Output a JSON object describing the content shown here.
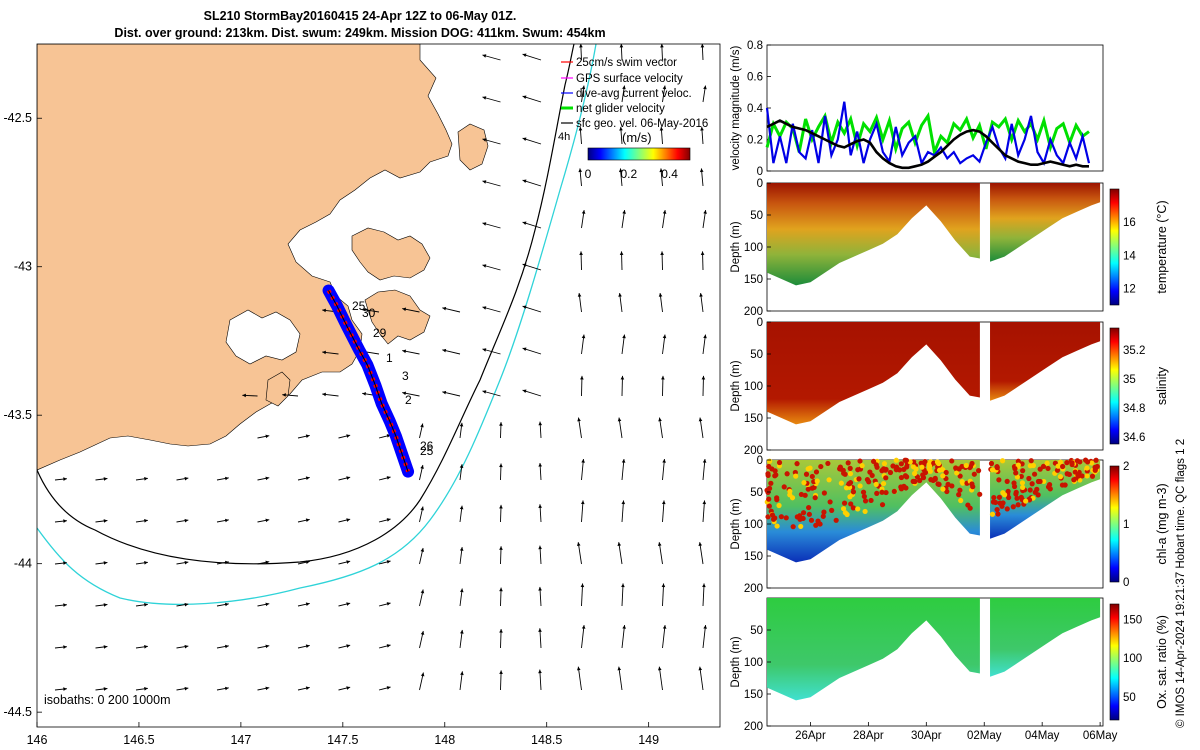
{
  "header": {
    "title_line1": "SL210 StormBay20160415 24-Apr 12Z to 06-May 01Z.",
    "title_line2": "Dist. over ground: 213km. Dist. swum: 249km. Mission DOG: 411km. Swum: 454km"
  },
  "colors": {
    "land": "#f7c495",
    "water": "#ffffff",
    "track_blue": "#0000ff",
    "track_red": "#ff0000",
    "isobath_200": "#000000",
    "isobath_1000": "#2fd3d8",
    "glider_net": "#00e000",
    "dive_avg": "#0000e6",
    "geo_vel": "#000000"
  },
  "chart_data": [
    {
      "type": "map",
      "xlim": [
        146,
        149.35
      ],
      "ylim": [
        -44.55,
        -42.25
      ],
      "x_ticks": [
        "146",
        "146.5",
        "147",
        "147.5",
        "148",
        "148.5",
        "149"
      ],
      "x_tick_values": [
        146,
        146.5,
        147,
        147.5,
        148,
        148.5,
        149
      ],
      "y_ticks": [
        "-42.5",
        "-43",
        "-43.5",
        "-44",
        "-44.5"
      ],
      "y_tick_values": [
        -42.5,
        -43,
        -43.5,
        -44,
        -44.5
      ],
      "legend": [
        {
          "label": "25cm/s swim vector",
          "color": "#ff0000"
        },
        {
          "label": "GPS surface velocity",
          "color": "#ff00ff"
        },
        {
          "label": "dive-avg current veloc.",
          "color": "#0000ff"
        },
        {
          "label": "net glider velocity",
          "color": "#00e000"
        },
        {
          "label": "sfc geo. vel. 06-May-2016",
          "color": "#000000"
        }
      ],
      "legend_extra": "4h",
      "colorbar": {
        "label": "(m/s)",
        "ticks": [
          "0",
          "0.2",
          "0.4"
        ],
        "tick_values": [
          0,
          0.2,
          0.4
        ],
        "range": [
          0,
          0.5
        ]
      },
      "isobath_label": "isobaths: 0   200   1000m",
      "day_labels": [
        "25",
        "30",
        "29",
        "1",
        "3",
        "2",
        "26",
        "25"
      ],
      "track": [
        [
          147.43,
          -43.08
        ],
        [
          147.47,
          -43.13
        ],
        [
          147.52,
          -43.2
        ],
        [
          147.58,
          -43.28
        ],
        [
          147.62,
          -43.33
        ],
        [
          147.66,
          -43.4
        ],
        [
          147.69,
          -43.46
        ],
        [
          147.73,
          -43.52
        ],
        [
          147.76,
          -43.57
        ],
        [
          147.79,
          -43.63
        ],
        [
          147.82,
          -43.69
        ]
      ]
    },
    {
      "type": "line",
      "ylabel": "velocity magnitude (m/s)",
      "ylim": [
        0,
        0.8
      ],
      "y_ticks": [
        "0",
        "0.2",
        "0.4",
        "0.6",
        "0.8"
      ],
      "y_tick_values": [
        0,
        0.2,
        0.4,
        0.6,
        0.8
      ],
      "xlim": [
        24.5,
        36.1
      ],
      "series": [
        {
          "color": "#00e000",
          "values": [
            0.15,
            0.3,
            0.22,
            0.31,
            0.27,
            0.12,
            0.33,
            0.2,
            0.28,
            0.35,
            0.18,
            0.31,
            0.24,
            0.33,
            0.16,
            0.3,
            0.25,
            0.34,
            0.2,
            0.32,
            0.14,
            0.27,
            0.31,
            0.18,
            0.29,
            0.35,
            0.12,
            0.22,
            0.18,
            0.3,
            0.26,
            0.33,
            0.21,
            0.29,
            0.14,
            0.31,
            0.28,
            0.33,
            0.2,
            0.32,
            0.25,
            0.3,
            0.2,
            0.32,
            0.15,
            0.27,
            0.3,
            0.18,
            0.29,
            0.22,
            0.25
          ]
        },
        {
          "color": "#0000e6",
          "values": [
            0.4,
            0.05,
            0.22,
            0.05,
            0.3,
            0.12,
            0.08,
            0.26,
            0.05,
            0.35,
            0.1,
            0.2,
            0.44,
            0.1,
            0.25,
            0.05,
            0.2,
            0.3,
            0.12,
            0.06,
            0.28,
            0.1,
            0.18,
            0.22,
            0.05,
            0.12,
            0.1,
            0.15,
            0.08,
            0.12,
            0.05,
            0.08,
            0.1,
            0.06,
            0.18,
            0.28,
            0.15,
            0.08,
            0.3,
            0.1,
            0.2,
            0.35,
            0.12,
            0.05,
            0.2,
            0.1,
            0.05,
            0.18,
            0.08,
            0.22,
            0.05
          ]
        },
        {
          "color": "#000000",
          "values": [
            0.28,
            0.3,
            0.32,
            0.3,
            0.28,
            0.27,
            0.26,
            0.24,
            0.22,
            0.2,
            0.18,
            0.16,
            0.15,
            0.17,
            0.19,
            0.2,
            0.18,
            0.12,
            0.08,
            0.05,
            0.03,
            0.02,
            0.02,
            0.03,
            0.04,
            0.06,
            0.09,
            0.12,
            0.16,
            0.2,
            0.23,
            0.25,
            0.26,
            0.25,
            0.22,
            0.18,
            0.14,
            0.1,
            0.08,
            0.06,
            0.05,
            0.04,
            0.04,
            0.05,
            0.06,
            0.05,
            0.04,
            0.03,
            0.04,
            0.03,
            0.03
          ]
        }
      ]
    },
    {
      "type": "heatmap",
      "ylabel": "Depth (m)",
      "ylim": [
        0,
        200
      ],
      "y_ticks": [
        "0",
        "50",
        "100",
        "150",
        "200"
      ],
      "y_tick_values": [
        0,
        50,
        100,
        150,
        200
      ],
      "cbar_label": "temperature (°C)",
      "cbar_ticks": [
        "12",
        "14",
        "16"
      ],
      "cbar_tick_values": [
        12,
        14,
        16
      ],
      "cbar_range": [
        11,
        18
      ]
    },
    {
      "type": "heatmap",
      "ylabel": "Depth (m)",
      "ylim": [
        0,
        200
      ],
      "y_ticks": [
        "0",
        "50",
        "100",
        "150",
        "200"
      ],
      "y_tick_values": [
        0,
        50,
        100,
        150,
        200
      ],
      "cbar_label": "salinity",
      "cbar_ticks": [
        "34.6",
        "34.8",
        "35",
        "35.2"
      ],
      "cbar_tick_values": [
        34.6,
        34.8,
        35,
        35.2
      ],
      "cbar_range": [
        34.55,
        35.35
      ]
    },
    {
      "type": "heatmap",
      "ylabel": "Depth (m)",
      "ylim": [
        0,
        200
      ],
      "y_ticks": [
        "0",
        "50",
        "100",
        "150",
        "200"
      ],
      "y_tick_values": [
        0,
        50,
        100,
        150,
        200
      ],
      "cbar_label": "chl-a (mg m-3)",
      "cbar_ticks": [
        "0",
        "1",
        "2"
      ],
      "cbar_tick_values": [
        0,
        1,
        2
      ],
      "cbar_range": [
        0,
        2
      ]
    },
    {
      "type": "heatmap",
      "ylabel": "Depth (m)",
      "ylim": [
        0,
        200
      ],
      "y_ticks": [
        "50",
        "100",
        "150",
        "200"
      ],
      "y_tick_values": [
        50,
        100,
        150,
        200
      ],
      "cbar_label": "Ox. sat. ratio (%)",
      "cbar_ticks": [
        "50",
        "100",
        "150"
      ],
      "cbar_tick_values": [
        50,
        100,
        150
      ],
      "cbar_range": [
        20,
        170
      ],
      "x_ticks": [
        "26Apr",
        "28Apr",
        "30Apr",
        "02May",
        "04May",
        "06May"
      ],
      "x_tick_values": [
        26,
        28,
        30,
        32,
        34,
        36
      ]
    }
  ],
  "profile": {
    "bottom_depth_days": [
      24.5,
      25.0,
      25.5,
      26.0,
      26.5,
      27.0,
      27.5,
      28.0,
      28.5,
      29.0,
      29.5,
      30.0,
      30.5,
      31.0,
      31.5,
      31.85,
      32.2,
      32.7,
      33.2,
      33.7,
      34.2,
      34.7,
      35.2,
      35.7,
      36.0
    ],
    "bottom_depth_values": [
      140,
      150,
      160,
      155,
      140,
      125,
      115,
      105,
      95,
      80,
      55,
      35,
      60,
      90,
      115,
      118,
      123,
      115,
      100,
      85,
      70,
      55,
      45,
      35,
      30
    ],
    "gap_days": [
      31.85,
      32.2
    ]
  },
  "side_note": "© IMOS 14-Apr-2024 19:21:37 Hobart time. QC flags 1  2"
}
